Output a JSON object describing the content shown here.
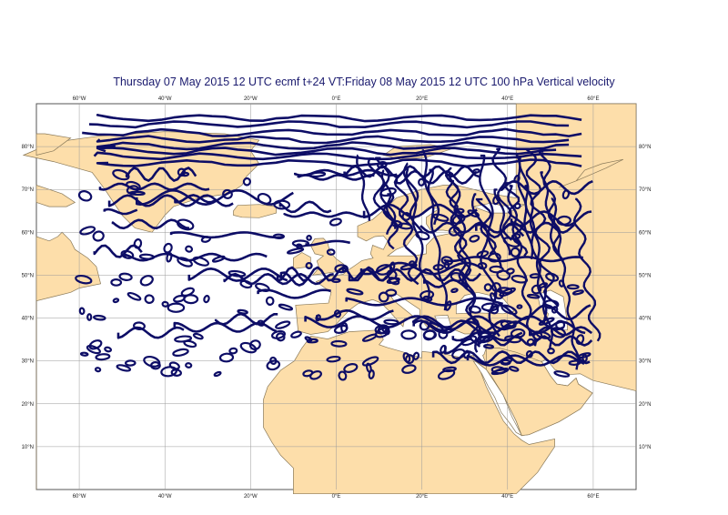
{
  "title": "Thursday 07 May 2015 12 UTC ecmf t+24 VT:Friday 08 May 2015 12 UTC 100 hPa  Vertical velocity",
  "map": {
    "projection": "cylindrical",
    "lon_range": [
      -70,
      70
    ],
    "lat_range": [
      0,
      90
    ],
    "data_domain": {
      "lon": [
        -60,
        60
      ],
      "lat": [
        25,
        88
      ]
    },
    "gridlines": true,
    "lon_ticks": [
      "60°W",
      "40°W",
      "20°W",
      "0°E",
      "20°E",
      "40°E",
      "60°E"
    ],
    "lat_ticks": [
      "10°N",
      "20°N",
      "30°N",
      "40°N",
      "50°N",
      "60°N",
      "70°N",
      "80°N"
    ],
    "colors": {
      "land": "#fddeaa",
      "coast": "#8a7a5a",
      "contour": "#0d0d66",
      "grid": "#9a9a9a",
      "background": "#ffffff"
    },
    "contour_field": "Vertical velocity"
  }
}
